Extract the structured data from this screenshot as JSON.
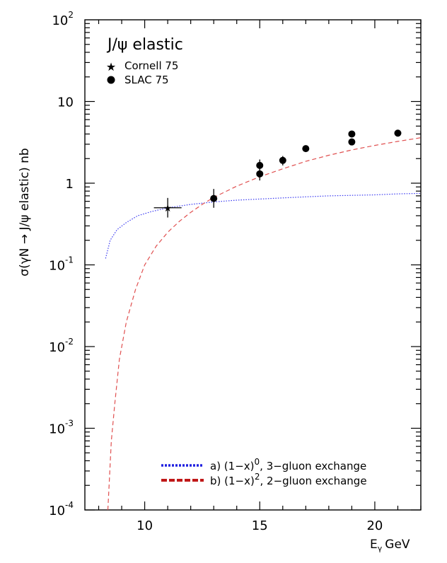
{
  "chart_data": {
    "type": "scatter",
    "title": "J/ψ elastic",
    "xlabel": "Eγ GeV",
    "xlabel_main": "E",
    "xlabel_sub": "γ",
    "xlabel_unit": "GeV",
    "ylabel": "σ(γN → J/ψ elastic) nb",
    "xlim": [
      7.4,
      22
    ],
    "ylim": [
      0.0001,
      100
    ],
    "yscale": "log",
    "x_ticks": [
      10,
      15,
      20
    ],
    "y_ticks": [
      {
        "value": 100,
        "base": "10",
        "exp": "2"
      },
      {
        "value": 10,
        "base": "10",
        "exp": ""
      },
      {
        "value": 1,
        "base": "1",
        "exp": ""
      },
      {
        "value": 0.1,
        "base": "10",
        "exp": "-1"
      },
      {
        "value": 0.01,
        "base": "10",
        "exp": "-2"
      },
      {
        "value": 0.001,
        "base": "10",
        "exp": "-3"
      },
      {
        "value": 0.0001,
        "base": "10",
        "exp": "-4"
      }
    ],
    "grid": false,
    "legend_position": "top-left",
    "series": [
      {
        "name": "Cornell 75",
        "marker": "star",
        "points": [
          {
            "x": 11.0,
            "y": 0.5,
            "xerr": 0.6,
            "yerr_low": 0.38,
            "yerr_high": 0.66
          }
        ]
      },
      {
        "name": "SLAC 75",
        "marker": "circle",
        "points": [
          {
            "x": 13.0,
            "y": 0.65,
            "yerr_low": 0.5,
            "yerr_high": 0.85
          },
          {
            "x": 15.0,
            "y": 1.65,
            "yerr_low": 1.45,
            "yerr_high": 1.95
          },
          {
            "x": 15.0,
            "y": 1.3,
            "yerr_low": 1.08,
            "yerr_high": 1.5
          },
          {
            "x": 16.0,
            "y": 1.9,
            "yerr_low": 1.65,
            "yerr_high": 2.15
          },
          {
            "x": 17.0,
            "y": 2.65,
            "yerr_low": 2.5,
            "yerr_high": 2.8
          },
          {
            "x": 19.0,
            "y": 4.0,
            "yerr_low": 3.8,
            "yerr_high": 4.2
          },
          {
            "x": 19.0,
            "y": 3.2,
            "yerr_low": 3.0,
            "yerr_high": 3.4
          },
          {
            "x": 21.0,
            "y": 4.1,
            "yerr_low": 3.9,
            "yerr_high": 4.3
          }
        ]
      }
    ],
    "curves": [
      {
        "name": "a) (1−x)⁰, 3−gluon exchange",
        "label_prefix": "a) (1−x)",
        "label_exp": "0",
        "label_suffix": ", 3−gluon exchange",
        "style": "dotted",
        "color": "#3a3af0",
        "points": [
          [
            8.3,
            0.12
          ],
          [
            8.5,
            0.2
          ],
          [
            8.8,
            0.27
          ],
          [
            9.2,
            0.33
          ],
          [
            9.7,
            0.4
          ],
          [
            10.3,
            0.45
          ],
          [
            11.0,
            0.5
          ],
          [
            12.0,
            0.55
          ],
          [
            13.0,
            0.59
          ],
          [
            14.0,
            0.62
          ],
          [
            15.0,
            0.64
          ],
          [
            16.0,
            0.66
          ],
          [
            17.0,
            0.68
          ],
          [
            18.0,
            0.7
          ],
          [
            19.0,
            0.71
          ],
          [
            20.0,
            0.72
          ],
          [
            21.0,
            0.74
          ],
          [
            22.0,
            0.75
          ]
        ]
      },
      {
        "name": "b) (1−x)², 2−gluon exchange",
        "label_prefix": "b) (1−x)",
        "label_exp": "2",
        "label_suffix": ", 2−gluon exchange",
        "style": "dashed",
        "color": "#e05050",
        "points": [
          [
            8.4,
            0.0001
          ],
          [
            8.55,
            0.0007
          ],
          [
            8.7,
            0.002
          ],
          [
            8.9,
            0.007
          ],
          [
            9.2,
            0.02
          ],
          [
            9.6,
            0.05
          ],
          [
            10.0,
            0.1
          ],
          [
            10.5,
            0.17
          ],
          [
            11.0,
            0.25
          ],
          [
            11.5,
            0.34
          ],
          [
            12.0,
            0.44
          ],
          [
            12.5,
            0.55
          ],
          [
            13.0,
            0.67
          ],
          [
            14.0,
            0.92
          ],
          [
            15.0,
            1.2
          ],
          [
            16.0,
            1.5
          ],
          [
            17.0,
            1.85
          ],
          [
            18.0,
            2.2
          ],
          [
            19.0,
            2.55
          ],
          [
            20.0,
            2.9
          ],
          [
            21.0,
            3.25
          ],
          [
            22.0,
            3.6
          ]
        ]
      }
    ]
  }
}
